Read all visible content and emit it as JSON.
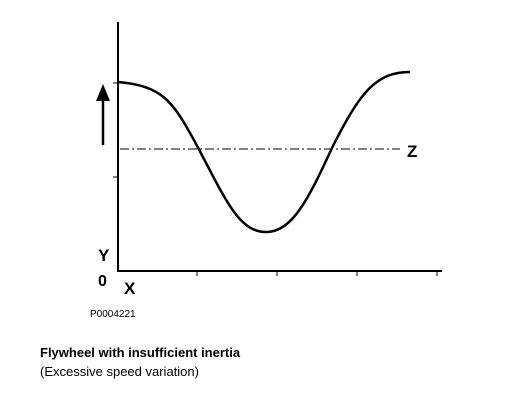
{
  "diagram": {
    "y_axis_label": "Y",
    "x_axis_label": "X",
    "origin_label": "0",
    "reference_line_label": "Z",
    "figure_id": "P0004221"
  },
  "caption": {
    "title": "Flywheel with insufficient inertia",
    "subtitle": "(Excessive speed variation)"
  }
}
